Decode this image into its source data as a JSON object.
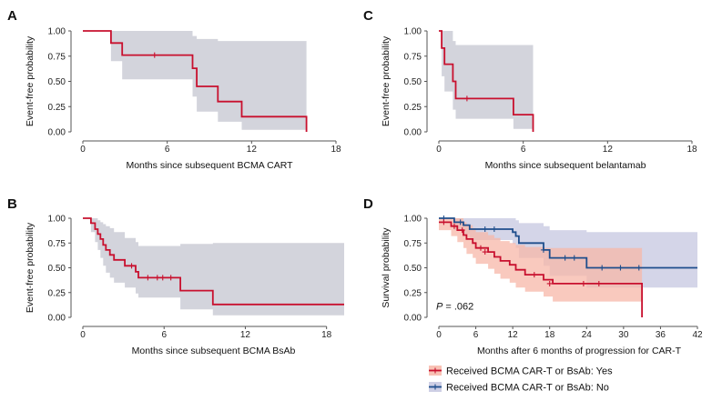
{
  "colors": {
    "red": "#C8102E",
    "blue": "#1F4E8C",
    "grey_band": "#D3D4DC",
    "red_band": "#F7B7A8",
    "blue_band": "#C5C7E0",
    "axis": "#555555"
  },
  "chart_data": [
    {
      "panel": "A",
      "type": "line",
      "xlabel": "Months since subsequent BCMA CART",
      "ylabel": "Event-free probability",
      "xlim": [
        0,
        18
      ],
      "ylim": [
        0,
        1
      ],
      "xticks": [
        0,
        6,
        12,
        18
      ],
      "xtick_labels": [
        "0",
        "6",
        "12",
        "18"
      ],
      "yticks": [
        0,
        0.25,
        0.5,
        0.75,
        1
      ],
      "ytick_labels": [
        "0.00",
        "0.25",
        "0.50",
        "0.75",
        "1.00"
      ],
      "series": [
        {
          "name": "Event-free probability",
          "color": "red",
          "steps": [
            [
              0,
              1.0
            ],
            [
              2.0,
              0.88
            ],
            [
              2.8,
              0.76
            ],
            [
              7.8,
              0.63
            ],
            [
              8.1,
              0.45
            ],
            [
              9.6,
              0.3
            ],
            [
              11.3,
              0.15
            ],
            [
              15.9,
              0.0
            ]
          ],
          "end": 15.9,
          "censor": [
            [
              5.1,
              0.76
            ]
          ],
          "band": [
            [
              0,
              1.0,
              1.0
            ],
            [
              2.0,
              1.0,
              0.7
            ],
            [
              2.8,
              1.0,
              0.52
            ],
            [
              7.8,
              0.95,
              0.35
            ],
            [
              8.1,
              0.92,
              0.2
            ],
            [
              9.6,
              0.9,
              0.1
            ],
            [
              11.3,
              0.9,
              0.02
            ]
          ],
          "band_color": "grey_band"
        }
      ]
    },
    {
      "panel": "C",
      "type": "line",
      "xlabel": "Months since subsequent belantamab",
      "ylabel": "Event-free probability",
      "xlim": [
        0,
        18
      ],
      "ylim": [
        0,
        1
      ],
      "xticks": [
        0,
        6,
        12,
        18
      ],
      "xtick_labels": [
        "0",
        "6",
        "12",
        "18"
      ],
      "yticks": [
        0,
        0.25,
        0.5,
        0.75,
        1
      ],
      "ytick_labels": [
        "0.00",
        "0.25",
        "0.50",
        "0.75",
        "1.00"
      ],
      "series": [
        {
          "name": "Event-free probability",
          "color": "red",
          "steps": [
            [
              0,
              1.0
            ],
            [
              0.2,
              0.83
            ],
            [
              0.4,
              0.67
            ],
            [
              1.0,
              0.5
            ],
            [
              1.2,
              0.33
            ],
            [
              5.3,
              0.17
            ],
            [
              6.7,
              0.0
            ]
          ],
          "end": 6.7,
          "censor": [
            [
              2.0,
              0.33
            ]
          ],
          "band": [
            [
              0,
              1.0,
              1.0
            ],
            [
              0.2,
              1.0,
              0.55
            ],
            [
              0.4,
              1.0,
              0.4
            ],
            [
              1.0,
              0.9,
              0.22
            ],
            [
              1.2,
              0.86,
              0.13
            ],
            [
              5.3,
              0.86,
              0.03
            ]
          ],
          "band_color": "grey_band"
        }
      ]
    },
    {
      "panel": "B",
      "type": "line",
      "xlabel": "Months since subsequent BCMA BsAb",
      "ylabel": "Event-free probability",
      "xlim": [
        0,
        19.3
      ],
      "ylim": [
        0,
        1
      ],
      "xticks": [
        0,
        6,
        12,
        18
      ],
      "xtick_labels": [
        "0",
        "6",
        "12",
        "18"
      ],
      "yticks": [
        0,
        0.25,
        0.5,
        0.75,
        1
      ],
      "ytick_labels": [
        "0.00",
        "0.25",
        "0.50",
        "0.75",
        "1.00"
      ],
      "series": [
        {
          "name": "Event-free probability",
          "color": "red",
          "steps": [
            [
              0,
              1.0
            ],
            [
              0.6,
              0.95
            ],
            [
              0.9,
              0.89
            ],
            [
              1.1,
              0.84
            ],
            [
              1.3,
              0.79
            ],
            [
              1.5,
              0.73
            ],
            [
              1.7,
              0.68
            ],
            [
              2.0,
              0.63
            ],
            [
              2.3,
              0.58
            ],
            [
              3.1,
              0.52
            ],
            [
              3.9,
              0.46
            ],
            [
              4.1,
              0.4
            ],
            [
              7.2,
              0.27
            ],
            [
              9.6,
              0.13
            ]
          ],
          "end": 19.3,
          "censor": [
            [
              3.6,
              0.52
            ],
            [
              4.8,
              0.4
            ],
            [
              5.5,
              0.4
            ],
            [
              5.9,
              0.4
            ],
            [
              6.5,
              0.4
            ]
          ],
          "band": [
            [
              0,
              1.0,
              1.0
            ],
            [
              0.6,
              1.0,
              0.86
            ],
            [
              0.9,
              1.0,
              0.76
            ],
            [
              1.1,
              0.98,
              0.68
            ],
            [
              1.3,
              0.96,
              0.6
            ],
            [
              1.5,
              0.94,
              0.52
            ],
            [
              1.7,
              0.92,
              0.45
            ],
            [
              2.0,
              0.9,
              0.4
            ],
            [
              2.3,
              0.86,
              0.35
            ],
            [
              3.1,
              0.8,
              0.3
            ],
            [
              3.9,
              0.76,
              0.24
            ],
            [
              4.1,
              0.72,
              0.2
            ],
            [
              7.2,
              0.74,
              0.08
            ],
            [
              9.6,
              0.75,
              0.02
            ]
          ],
          "band_color": "grey_band"
        }
      ]
    },
    {
      "panel": "D",
      "type": "line",
      "xlabel": "Months after 6 months of progression for CAR-T",
      "ylabel": "Survival probability",
      "xlim": [
        0,
        42
      ],
      "ylim": [
        0,
        1
      ],
      "xticks": [
        0,
        6,
        12,
        18,
        24,
        30,
        36,
        42
      ],
      "xtick_labels": [
        "0",
        "6",
        "12",
        "18",
        "24",
        "30",
        "36",
        "42"
      ],
      "yticks": [
        0,
        0.25,
        0.5,
        0.75,
        1
      ],
      "ytick_labels": [
        "0.00",
        "0.25",
        "0.50",
        "0.75",
        "1.00"
      ],
      "annotation": {
        "p_label": "P",
        "p_text": " = .062"
      },
      "series": [
        {
          "name": "Received BCMA CAR-T or BsAb: No",
          "color": "blue",
          "steps": [
            [
              0,
              1.0
            ],
            [
              2.5,
              0.96
            ],
            [
              4.0,
              0.93
            ],
            [
              5.0,
              0.89
            ],
            [
              12.0,
              0.86
            ],
            [
              12.5,
              0.82
            ],
            [
              13.0,
              0.75
            ],
            [
              17.0,
              0.68
            ],
            [
              18.0,
              0.6
            ],
            [
              24.0,
              0.5
            ]
          ],
          "end": 42,
          "censor": [
            [
              0.8,
              1.0
            ],
            [
              3.5,
              0.96
            ],
            [
              7.5,
              0.89
            ],
            [
              9.0,
              0.89
            ],
            [
              17.0,
              0.68
            ],
            [
              20.5,
              0.6
            ],
            [
              22.0,
              0.6
            ],
            [
              26.5,
              0.5
            ],
            [
              29.5,
              0.5
            ],
            [
              32.5,
              0.5
            ]
          ],
          "band": [
            [
              0,
              1.0,
              1.0
            ],
            [
              2.5,
              1.0,
              0.88
            ],
            [
              4.0,
              1.0,
              0.84
            ],
            [
              5.0,
              1.0,
              0.78
            ],
            [
              12.0,
              1.0,
              0.74
            ],
            [
              12.5,
              0.98,
              0.7
            ],
            [
              13.0,
              0.95,
              0.6
            ],
            [
              17.0,
              0.92,
              0.52
            ],
            [
              18.0,
              0.88,
              0.42
            ],
            [
              24.0,
              0.86,
              0.3
            ]
          ],
          "band_color": "blue_band"
        },
        {
          "name": "Received BCMA CAR-T or BsAb: Yes",
          "color": "red",
          "steps": [
            [
              0,
              0.96
            ],
            [
              2.0,
              0.92
            ],
            [
              3.0,
              0.88
            ],
            [
              4.0,
              0.83
            ],
            [
              4.5,
              0.79
            ],
            [
              5.5,
              0.75
            ],
            [
              6.0,
              0.7
            ],
            [
              8.0,
              0.66
            ],
            [
              9.0,
              0.61
            ],
            [
              10.0,
              0.57
            ],
            [
              11.5,
              0.53
            ],
            [
              12.5,
              0.48
            ],
            [
              14.0,
              0.43
            ],
            [
              17.0,
              0.38
            ],
            [
              18.5,
              0.34
            ],
            [
              33.0,
              0.0
            ]
          ],
          "end": 33.0,
          "censor": [
            [
              0.8,
              0.96
            ],
            [
              2.5,
              0.92
            ],
            [
              3.8,
              0.88
            ],
            [
              6.8,
              0.7
            ],
            [
              7.5,
              0.66
            ],
            [
              15.5,
              0.43
            ],
            [
              18.0,
              0.34
            ],
            [
              23.5,
              0.34
            ],
            [
              26.0,
              0.34
            ]
          ],
          "band": [
            [
              0,
              1.0,
              0.88
            ],
            [
              2.0,
              1.0,
              0.82
            ],
            [
              3.0,
              1.0,
              0.76
            ],
            [
              4.0,
              0.96,
              0.7
            ],
            [
              4.5,
              0.93,
              0.64
            ],
            [
              5.5,
              0.9,
              0.6
            ],
            [
              6.0,
              0.86,
              0.54
            ],
            [
              8.0,
              0.83,
              0.49
            ],
            [
              9.0,
              0.8,
              0.44
            ],
            [
              10.0,
              0.77,
              0.39
            ],
            [
              11.5,
              0.75,
              0.35
            ],
            [
              12.5,
              0.73,
              0.3
            ],
            [
              14.0,
              0.71,
              0.26
            ],
            [
              17.0,
              0.7,
              0.21
            ],
            [
              18.5,
              0.7,
              0.16
            ]
          ],
          "band_color": "red_band"
        }
      ],
      "legend": [
        {
          "label": "Received BCMA CAR-T or BsAb: Yes",
          "color": "red",
          "band_color": "red_band"
        },
        {
          "label": "Received BCMA CAR-T or BsAb: No",
          "color": "blue",
          "band_color": "blue_band"
        }
      ]
    }
  ]
}
